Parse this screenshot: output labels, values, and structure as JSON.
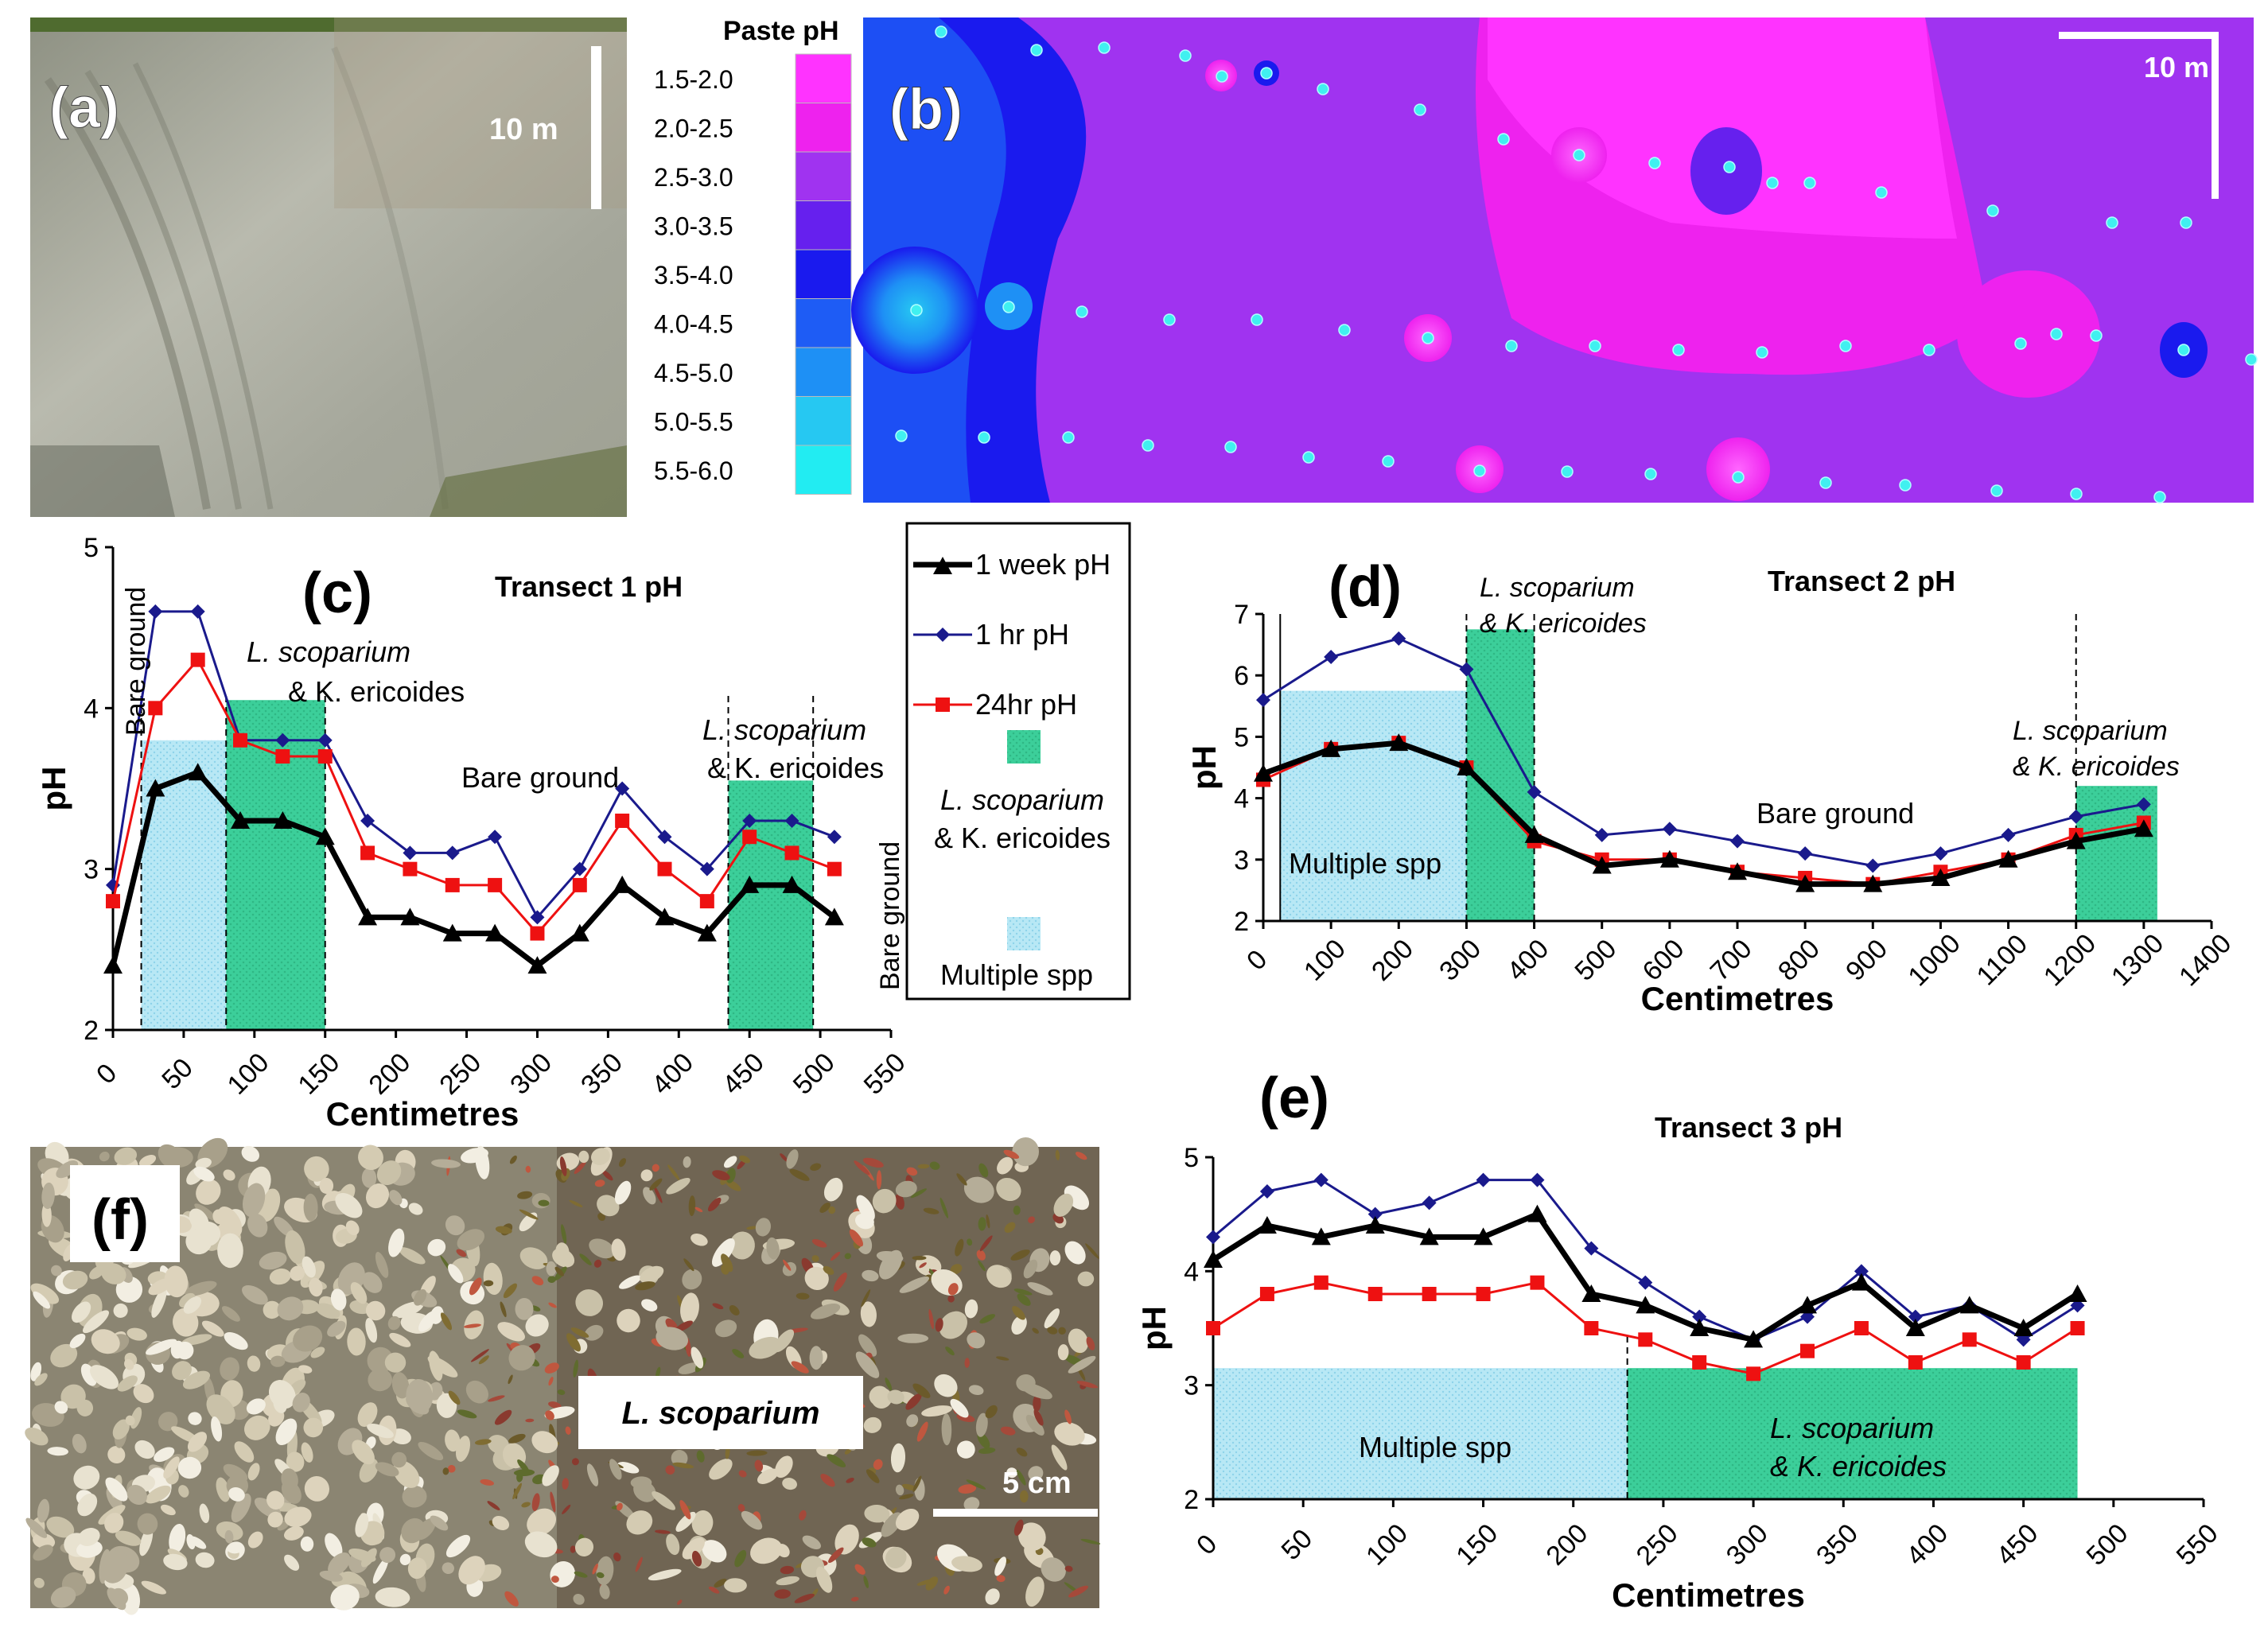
{
  "panels": {
    "a": {
      "label": "(a)",
      "scale": "10 m"
    },
    "b": {
      "label": "(b)",
      "scale": "10 m"
    },
    "f": {
      "label": "(f)",
      "scale": "5 cm",
      "species_label": "L. scoparium"
    }
  },
  "legend_ph": {
    "title": "Paste pH",
    "items": [
      {
        "range": "1.5-2.0",
        "color": "#ff33ff"
      },
      {
        "range": "2.0-2.5",
        "color": "#ee22ee"
      },
      {
        "range": "2.5-3.0",
        "color": "#a033f0"
      },
      {
        "range": "3.0-3.5",
        "color": "#6620ee"
      },
      {
        "range": "3.5-4.0",
        "color": "#1a1aee"
      },
      {
        "range": "4.0-4.5",
        "color": "#1e5cf5"
      },
      {
        "range": "4.5-5.0",
        "color": "#1e90f5"
      },
      {
        "range": "5.0-5.5",
        "color": "#26c8f2"
      },
      {
        "range": "5.5-6.0",
        "color": "#22ecf2"
      }
    ]
  },
  "series_legend": {
    "week": "1 week pH",
    "hr": "1 hr pH",
    "day": "24hr pH",
    "green": "L. scoparium",
    "green2": "& K. ericoides",
    "blue": "Multiple spp"
  },
  "colors": {
    "week": "#000000",
    "hr": "#1a1a8c",
    "day": "#ee1111",
    "green": "#3ccf9a",
    "blue": "#b8e8f5"
  },
  "chart_data": [
    {
      "id": "c",
      "panel_label": "(c)",
      "type": "line",
      "title": "Transect 1 pH",
      "xlabel": "Centimetres",
      "ylabel": "pH",
      "xlim": [
        0,
        550
      ],
      "ylim": [
        2,
        5
      ],
      "xticks": [
        "0",
        "50",
        "100",
        "150",
        "200",
        "250",
        "300",
        "350",
        "400",
        "450",
        "500",
        "550"
      ],
      "yticks": [
        "2",
        "3",
        "4",
        "5"
      ],
      "x": [
        0,
        30,
        60,
        90,
        120,
        150,
        180,
        210,
        240,
        270,
        300,
        330,
        360,
        390,
        420,
        450,
        480,
        510
      ],
      "series": [
        {
          "name": "1 week pH",
          "values": [
            2.4,
            3.5,
            3.6,
            3.3,
            3.3,
            3.2,
            2.7,
            2.7,
            2.6,
            2.6,
            2.4,
            2.6,
            2.9,
            2.7,
            2.6,
            2.9,
            2.9,
            2.7
          ]
        },
        {
          "name": "1 hr pH",
          "values": [
            2.9,
            4.6,
            4.6,
            3.8,
            3.8,
            3.8,
            3.3,
            3.1,
            3.1,
            3.2,
            2.7,
            3.0,
            3.5,
            3.2,
            3.0,
            3.3,
            3.3,
            3.2
          ]
        },
        {
          "name": "24hr pH",
          "values": [
            2.8,
            4.0,
            4.3,
            3.8,
            3.7,
            3.7,
            3.1,
            3.0,
            2.9,
            2.9,
            2.6,
            2.9,
            3.3,
            3.0,
            2.8,
            3.2,
            3.1,
            3.0
          ]
        }
      ],
      "annotations": {
        "bare1": "Bare ground",
        "ls1": "L. scoparium",
        "ke1": "& K. ericoides",
        "bare2": "Bare ground",
        "ls2": "L. scoparium",
        "ke2": "& K. ericoides",
        "bare3": "Bare ground"
      }
    },
    {
      "id": "d",
      "panel_label": "(d)",
      "type": "line",
      "title": "Transect 2 pH",
      "xlabel": "Centimetres",
      "ylabel": "pH",
      "xlim": [
        0,
        1400
      ],
      "ylim": [
        2,
        7
      ],
      "xticks": [
        "0",
        "100",
        "200",
        "300",
        "400",
        "500",
        "600",
        "700",
        "800",
        "900",
        "1000",
        "1100",
        "1200",
        "1300",
        "1400"
      ],
      "yticks": [
        "2",
        "3",
        "4",
        "5",
        "6",
        "7"
      ],
      "x": [
        0,
        100,
        200,
        300,
        400,
        500,
        600,
        700,
        800,
        900,
        1000,
        1100,
        1200,
        1300
      ],
      "series": [
        {
          "name": "1 week pH",
          "values": [
            4.4,
            4.8,
            4.9,
            4.5,
            3.4,
            2.9,
            3.0,
            2.8,
            2.6,
            2.6,
            2.7,
            3.0,
            3.3,
            3.5
          ]
        },
        {
          "name": "1 hr pH",
          "values": [
            5.6,
            6.3,
            6.6,
            6.1,
            4.1,
            3.4,
            3.5,
            3.3,
            3.1,
            2.9,
            3.1,
            3.4,
            3.7,
            3.9
          ]
        },
        {
          "name": "24hr pH",
          "values": [
            4.3,
            4.8,
            4.9,
            4.5,
            3.3,
            3.0,
            3.0,
            2.8,
            2.7,
            2.6,
            2.8,
            3.0,
            3.4,
            3.6
          ]
        }
      ],
      "annotations": {
        "ls1": "L. scoparium",
        "ke1": "& K. ericoides",
        "multi": "Multiple spp",
        "bare": "Bare ground",
        "ls2": "L. scoparium",
        "ke2": "& K. ericoides"
      }
    },
    {
      "id": "e",
      "panel_label": "(e)",
      "type": "line",
      "title": "Transect 3 pH",
      "xlabel": "Centimetres",
      "ylabel": "pH",
      "xlim": [
        0,
        550
      ],
      "ylim": [
        2,
        5
      ],
      "xticks": [
        "0",
        "50",
        "100",
        "150",
        "200",
        "250",
        "300",
        "350",
        "400",
        "450",
        "500",
        "550"
      ],
      "yticks": [
        "2",
        "3",
        "4",
        "5"
      ],
      "x": [
        0,
        30,
        60,
        90,
        120,
        150,
        180,
        210,
        240,
        270,
        300,
        330,
        360,
        390,
        420,
        450,
        480
      ],
      "series": [
        {
          "name": "1 week pH",
          "values": [
            4.1,
            4.4,
            4.3,
            4.4,
            4.3,
            4.3,
            4.5,
            3.8,
            3.7,
            3.5,
            3.4,
            3.7,
            3.9,
            3.5,
            3.7,
            3.5,
            3.8
          ]
        },
        {
          "name": "1 hr pH",
          "values": [
            4.3,
            4.7,
            4.8,
            4.5,
            4.6,
            4.8,
            4.8,
            4.2,
            3.9,
            3.6,
            3.4,
            3.6,
            4.0,
            3.6,
            3.7,
            3.4,
            3.7
          ]
        },
        {
          "name": "24hr pH",
          "values": [
            3.5,
            3.8,
            3.9,
            3.8,
            3.8,
            3.8,
            3.9,
            3.5,
            3.4,
            3.2,
            3.1,
            3.3,
            3.5,
            3.2,
            3.4,
            3.2,
            3.5
          ]
        }
      ],
      "annotations": {
        "multi": "Multiple spp",
        "ls": "L. scoparium",
        "ke": "& K. ericoides"
      }
    }
  ]
}
